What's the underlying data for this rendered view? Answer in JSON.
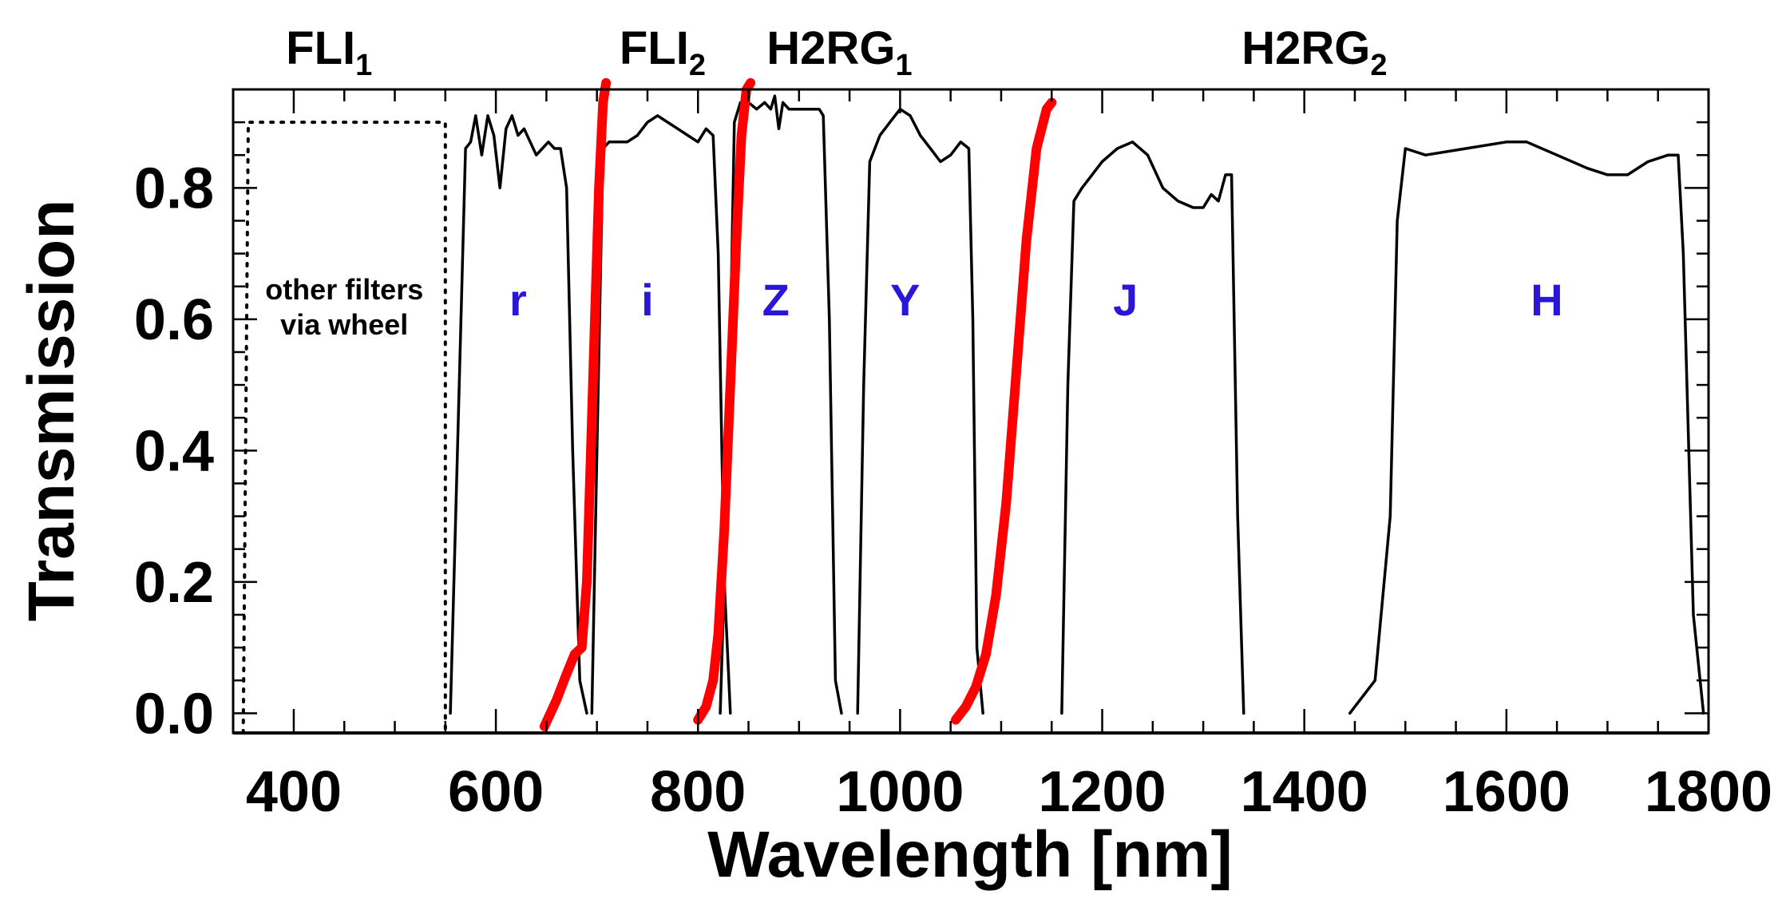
{
  "chart_data": {
    "type": "line",
    "xlabel": "Wavelength [nm]",
    "ylabel": "Transmission",
    "xlim": [
      340,
      1800
    ],
    "ylim": [
      -0.03,
      0.95
    ],
    "xticks": [
      400,
      600,
      800,
      1000,
      1200,
      1400,
      1600,
      1800
    ],
    "yticks": [
      "0.0",
      "0.2",
      "0.4",
      "0.6",
      "0.8"
    ],
    "yticks_values": [
      0.0,
      0.2,
      0.4,
      0.6,
      0.8
    ],
    "grid": false,
    "detectors": [
      {
        "name": "FLI",
        "sub": "1",
        "x": 435
      },
      {
        "name": "FLI",
        "sub": "2",
        "x": 765
      },
      {
        "name": "H2RG",
        "sub": "1",
        "x": 940
      },
      {
        "name": "H2RG",
        "sub": "2",
        "x": 1410
      }
    ],
    "other_filters": {
      "lines": [
        "other filters",
        "via wheel"
      ],
      "x": [
        350,
        550
      ],
      "y_top": 0.9,
      "style": "dotted"
    },
    "series": [
      {
        "label": "r",
        "label_x": 622,
        "label_y": 0.63,
        "color": "#000000",
        "x": [
          555,
          562,
          570,
          575,
          580,
          586,
          592,
          598,
          604,
          610,
          616,
          622,
          628,
          634,
          640,
          646,
          652,
          658,
          664,
          670,
          676,
          683,
          690
        ],
        "y": [
          0.0,
          0.4,
          0.86,
          0.87,
          0.91,
          0.85,
          0.91,
          0.88,
          0.8,
          0.89,
          0.91,
          0.88,
          0.89,
          0.87,
          0.85,
          0.86,
          0.87,
          0.86,
          0.86,
          0.8,
          0.4,
          0.05,
          0.0
        ]
      },
      {
        "label": "i",
        "label_x": 750,
        "label_y": 0.63,
        "color": "#000000",
        "x": [
          695,
          700,
          706,
          712,
          720,
          730,
          740,
          750,
          760,
          770,
          780,
          790,
          800,
          808,
          815,
          820,
          826,
          832
        ],
        "y": [
          0.0,
          0.4,
          0.86,
          0.87,
          0.87,
          0.87,
          0.88,
          0.9,
          0.91,
          0.9,
          0.89,
          0.88,
          0.87,
          0.89,
          0.88,
          0.7,
          0.2,
          0.0
        ]
      },
      {
        "label": "Z",
        "label_x": 877,
        "label_y": 0.63,
        "color": "#000000",
        "x": [
          822,
          830,
          836,
          842,
          850,
          858,
          866,
          872,
          876,
          880,
          884,
          890,
          900,
          910,
          920,
          924,
          930,
          936,
          942
        ],
        "y": [
          0.0,
          0.4,
          0.9,
          0.93,
          0.93,
          0.92,
          0.93,
          0.92,
          0.94,
          0.89,
          0.93,
          0.92,
          0.92,
          0.92,
          0.92,
          0.91,
          0.6,
          0.05,
          0.0
        ]
      },
      {
        "label": "Y",
        "label_x": 1005,
        "label_y": 0.63,
        "color": "#000000",
        "x": [
          958,
          964,
          970,
          980,
          990,
          1000,
          1010,
          1020,
          1030,
          1040,
          1050,
          1060,
          1068,
          1072,
          1076,
          1082
        ],
        "y": [
          0.0,
          0.5,
          0.84,
          0.88,
          0.9,
          0.92,
          0.91,
          0.88,
          0.86,
          0.84,
          0.85,
          0.87,
          0.86,
          0.6,
          0.1,
          0.0
        ]
      },
      {
        "label": "J",
        "label_x": 1223,
        "label_y": 0.63,
        "color": "#000000",
        "x": [
          1160,
          1166,
          1172,
          1180,
          1190,
          1200,
          1215,
          1230,
          1245,
          1260,
          1275,
          1290,
          1300,
          1308,
          1315,
          1322,
          1328,
          1334,
          1340
        ],
        "y": [
          0.0,
          0.5,
          0.78,
          0.8,
          0.82,
          0.84,
          0.86,
          0.87,
          0.85,
          0.8,
          0.78,
          0.77,
          0.77,
          0.79,
          0.78,
          0.82,
          0.82,
          0.3,
          0.0
        ]
      },
      {
        "label": "H",
        "label_x": 1640,
        "label_y": 0.63,
        "color": "#000000",
        "x": [
          1445,
          1470,
          1485,
          1492,
          1500,
          1520,
          1560,
          1600,
          1620,
          1650,
          1680,
          1700,
          1720,
          1740,
          1760,
          1770,
          1775,
          1785,
          1795
        ],
        "y": [
          0.0,
          0.05,
          0.3,
          0.75,
          0.86,
          0.85,
          0.86,
          0.87,
          0.87,
          0.85,
          0.83,
          0.82,
          0.82,
          0.84,
          0.85,
          0.85,
          0.7,
          0.15,
          0.0
        ]
      },
      {
        "label": "",
        "color": "#ff0000",
        "x": [
          648,
          660,
          670,
          678,
          685,
          690,
          694,
          698,
          702,
          706,
          709
        ],
        "y": [
          -0.02,
          0.02,
          0.06,
          0.09,
          0.1,
          0.2,
          0.4,
          0.6,
          0.8,
          0.93,
          0.96
        ]
      },
      {
        "label": "",
        "color": "#ff0000",
        "x": [
          800,
          808,
          815,
          820,
          826,
          832,
          838,
          843,
          848,
          852
        ],
        "y": [
          -0.01,
          0.01,
          0.05,
          0.12,
          0.28,
          0.5,
          0.72,
          0.88,
          0.95,
          0.96
        ]
      },
      {
        "label": "",
        "color": "#ff0000",
        "x": [
          1055,
          1065,
          1075,
          1085,
          1095,
          1105,
          1115,
          1125,
          1135,
          1145,
          1150
        ],
        "y": [
          -0.01,
          0.01,
          0.04,
          0.09,
          0.18,
          0.32,
          0.52,
          0.72,
          0.86,
          0.92,
          0.93
        ]
      }
    ]
  }
}
